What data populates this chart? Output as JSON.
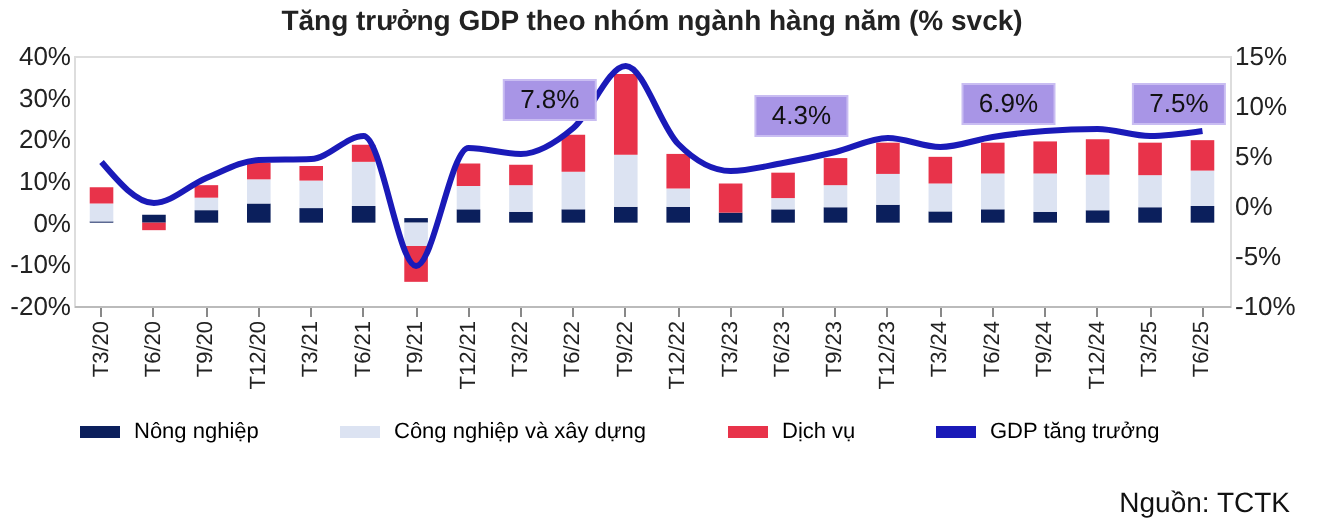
{
  "chart_data": {
    "type": "bar",
    "title": "Tăng trưởng GDP theo nhóm ngành hàng năm (% svck)",
    "categories": [
      "T3/20",
      "T6/20",
      "T9/20",
      "T12/20",
      "T3/21",
      "T6/21",
      "T9/21",
      "T12/21",
      "T3/22",
      "T6/22",
      "T9/22",
      "T12/22",
      "T3/23",
      "T6/23",
      "T9/23",
      "T12/23",
      "T3/24",
      "T6/24",
      "T9/24",
      "T12/24",
      "T3/25",
      "T6/25"
    ],
    "stacked": true,
    "series": [
      {
        "name": "Nông nghiệp",
        "color": "#0b1f5c",
        "values": [
          0.3,
          1.9,
          3.0,
          4.6,
          3.5,
          4.0,
          1.1,
          3.2,
          2.6,
          3.2,
          3.8,
          3.8,
          2.4,
          3.2,
          3.7,
          4.3,
          2.7,
          3.2,
          2.6,
          3.0,
          3.7,
          4.0
        ]
      },
      {
        "name": "Công nghiệp và xây dựng",
        "color": "#dce3f2",
        "values": [
          4.3,
          null,
          3.0,
          5.8,
          6.6,
          10.6,
          -5.6,
          5.6,
          6.4,
          9.0,
          12.5,
          4.4,
          null,
          2.7,
          5.3,
          7.4,
          6.7,
          8.6,
          9.2,
          8.5,
          7.7,
          8.5
        ]
      },
      {
        "name": "Dịch vụ",
        "color": "#e8334a",
        "values": [
          3.9,
          -1.8,
          3.0,
          4.0,
          3.5,
          4.1,
          -8.6,
          5.4,
          4.9,
          8.9,
          19.4,
          8.3,
          7.0,
          6.1,
          6.5,
          7.5,
          6.4,
          7.4,
          7.7,
          8.5,
          7.8,
          7.3
        ]
      },
      {
        "name": "GDP tăng trưởng",
        "color": "#1a1ab8",
        "type": "line",
        "axis": "y2",
        "values": [
          4.4,
          0.3,
          2.8,
          4.6,
          4.7,
          7.0,
          -6.0,
          5.8,
          5.2,
          7.8,
          14.0,
          6.2,
          3.5,
          4.3,
          5.4,
          6.8,
          5.9,
          6.9,
          7.5,
          7.7,
          7.0,
          7.5
        ]
      }
    ],
    "ylim": [
      -20,
      40
    ],
    "yticks": [
      {
        "value": -20,
        "label": "-20%"
      },
      {
        "value": -10,
        "label": "-10%"
      },
      {
        "value": 0,
        "label": "0%"
      },
      {
        "value": 10,
        "label": "10%"
      },
      {
        "value": 20,
        "label": "20%"
      },
      {
        "value": 30,
        "label": "30%"
      },
      {
        "value": 40,
        "label": "40%"
      }
    ],
    "y2lim": [
      -10,
      15
    ],
    "y2ticks": [
      {
        "value": -10,
        "label": "-10%"
      },
      {
        "value": -5,
        "label": "-5%"
      },
      {
        "value": 0,
        "label": "0%"
      },
      {
        "value": 5,
        "label": "5%"
      },
      {
        "value": 10,
        "label": "10%"
      },
      {
        "value": 15,
        "label": "15%"
      }
    ],
    "grid": false,
    "legend": "bottom",
    "marker": "none",
    "annotations": [
      "7.8%",
      "4.3%",
      "6.9%",
      "7.5%",
      "Nguồn: TCTK"
    ]
  }
}
